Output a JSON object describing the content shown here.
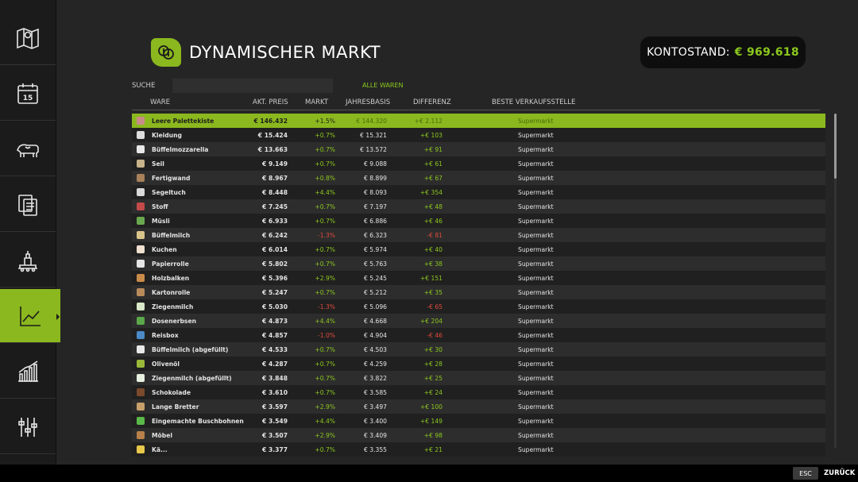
{
  "header": {
    "title": "DYNAMISCHER MARKT"
  },
  "balance": {
    "label": "KONTOSTAND:",
    "value": "€ 969.618"
  },
  "filter": {
    "search_label": "SUCHE",
    "search_value": "",
    "category": "ALLE WAREN"
  },
  "columns": [
    "WARE",
    "AKT. PREIS",
    "MARKT",
    "JAHRESBASIS",
    "DIFFERENZ",
    "BESTE VERKAUFSSTELLE"
  ],
  "colors": {
    "accent": "#8bb81e",
    "positive": "#8bc81e",
    "negative": "#e04a3c"
  },
  "sidebar": {
    "items": [
      {
        "icon": "map-icon"
      },
      {
        "icon": "calendar-icon",
        "label": "15"
      },
      {
        "icon": "animals-icon"
      },
      {
        "icon": "contracts-icon"
      },
      {
        "icon": "production-icon"
      },
      {
        "icon": "market-chart-icon",
        "active": true
      },
      {
        "icon": "statistics-icon"
      },
      {
        "icon": "settings-icon"
      }
    ]
  },
  "rows": [
    {
      "name": "Leere Palettekiste",
      "icon": "#c98a8a",
      "price": "€ 146.432",
      "market": "+1.5%",
      "base": "€ 144.320",
      "diff": "+€ 2.112",
      "store": "Supermarkt",
      "selected": true
    },
    {
      "name": "Kleidung",
      "icon": "#dcdcdc",
      "price": "€ 15.424",
      "market": "+0.7%",
      "base": "€ 15.321",
      "diff": "+€ 103",
      "store": "Supermarkt"
    },
    {
      "name": "Büffelmozzarella",
      "icon": "#e8e8e8",
      "price": "€ 13.663",
      "market": "+0.7%",
      "base": "€ 13.572",
      "diff": "+€ 91",
      "store": "Supermarkt"
    },
    {
      "name": "Seil",
      "icon": "#c7b28a",
      "price": "€ 9.149",
      "market": "+0.7%",
      "base": "€ 9.088",
      "diff": "+€ 61",
      "store": "Supermarkt"
    },
    {
      "name": "Fertigwand",
      "icon": "#a8805a",
      "price": "€ 8.967",
      "market": "+0.8%",
      "base": "€ 8.899",
      "diff": "+€ 67",
      "store": "Supermarkt"
    },
    {
      "name": "Segeltuch",
      "icon": "#d8d8d8",
      "price": "€ 8.448",
      "market": "+4.4%",
      "base": "€ 8.093",
      "diff": "+€ 354",
      "store": "Supermarkt"
    },
    {
      "name": "Stoff",
      "icon": "#c44a4a",
      "price": "€ 7.245",
      "market": "+0.7%",
      "base": "€ 7.197",
      "diff": "+€ 48",
      "store": "Supermarkt"
    },
    {
      "name": "Müsli",
      "icon": "#6aa84f",
      "price": "€ 6.933",
      "market": "+0.7%",
      "base": "€ 6.886",
      "diff": "+€ 46",
      "store": "Supermarkt"
    },
    {
      "name": "Büffelmilch",
      "icon": "#d9c58a",
      "price": "€ 6.242",
      "market": "-1.3%",
      "base": "€ 6.323",
      "diff": "-€ 81",
      "store": "Supermarkt"
    },
    {
      "name": "Kuchen",
      "icon": "#f0e0d0",
      "price": "€ 6.014",
      "market": "+0.7%",
      "base": "€ 5.974",
      "diff": "+€ 40",
      "store": "Supermarkt"
    },
    {
      "name": "Papierrolle",
      "icon": "#e6e6e6",
      "price": "€ 5.802",
      "market": "+0.7%",
      "base": "€ 5.763",
      "diff": "+€ 38",
      "store": "Supermarkt"
    },
    {
      "name": "Holzbalken",
      "icon": "#c98b4a",
      "price": "€ 5.396",
      "market": "+2.9%",
      "base": "€ 5.245",
      "diff": "+€ 151",
      "store": "Supermarkt"
    },
    {
      "name": "Kartonrolle",
      "icon": "#b98a5a",
      "price": "€ 5.247",
      "market": "+0.7%",
      "base": "€ 5.212",
      "diff": "+€ 35",
      "store": "Supermarkt"
    },
    {
      "name": "Ziegenmilch",
      "icon": "#d8e8c8",
      "price": "€ 5.030",
      "market": "-1.3%",
      "base": "€ 5.096",
      "diff": "-€ 65",
      "store": "Supermarkt"
    },
    {
      "name": "Dosenerbsen",
      "icon": "#5aa84a",
      "price": "€ 4.873",
      "market": "+4.4%",
      "base": "€ 4.668",
      "diff": "+€ 204",
      "store": "Supermarkt"
    },
    {
      "name": "Reisbox",
      "icon": "#4a8ac8",
      "price": "€ 4.857",
      "market": "-1.0%",
      "base": "€ 4.904",
      "diff": "-€ 46",
      "store": "Supermarkt"
    },
    {
      "name": "Büffelmilch (abgefüllt)",
      "icon": "#e8e8e8",
      "price": "€ 4.533",
      "market": "+0.7%",
      "base": "€ 4.503",
      "diff": "+€ 30",
      "store": "Supermarkt"
    },
    {
      "name": "Olivenöl",
      "icon": "#9ab83a",
      "price": "€ 4.287",
      "market": "+0.7%",
      "base": "€ 4.259",
      "diff": "+€ 28",
      "store": "Supermarkt"
    },
    {
      "name": "Ziegenmilch (abgefüllt)",
      "icon": "#e8f0e0",
      "price": "€ 3.848",
      "market": "+0.7%",
      "base": "€ 3.822",
      "diff": "+€ 25",
      "store": "Supermarkt"
    },
    {
      "name": "Schokolade",
      "icon": "#7a4a2a",
      "price": "€ 3.610",
      "market": "+0.7%",
      "base": "€ 3.585",
      "diff": "+€ 24",
      "store": "Supermarkt"
    },
    {
      "name": "Lange Bretter",
      "icon": "#c8a06a",
      "price": "€ 3.597",
      "market": "+2.9%",
      "base": "€ 3.497",
      "diff": "+€ 100",
      "store": "Supermarkt"
    },
    {
      "name": "Eingemachte Buschbohnen",
      "icon": "#5ab84a",
      "price": "€ 3.549",
      "market": "+4.4%",
      "base": "€ 3.400",
      "diff": "+€ 149",
      "store": "Supermarkt"
    },
    {
      "name": "Möbel",
      "icon": "#b8804a",
      "price": "€ 3.507",
      "market": "+2.9%",
      "base": "€ 3.409",
      "diff": "+€ 98",
      "store": "Supermarkt"
    },
    {
      "name": "Kä...",
      "icon": "#e8c84a",
      "price": "€ 3.377",
      "market": "+0.7%",
      "base": "€ 3.355",
      "diff": "+€ 21",
      "store": "Supermarkt"
    }
  ],
  "footer": {
    "key": "ESC",
    "action": "ZURÜCK"
  }
}
